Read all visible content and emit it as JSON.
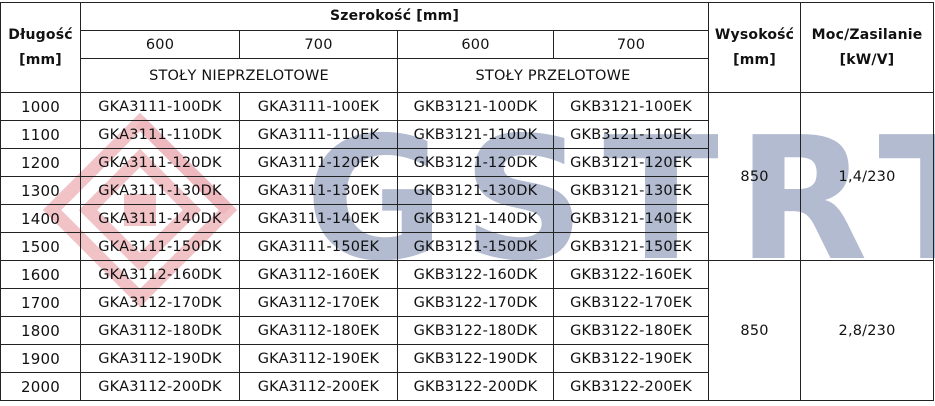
{
  "header": {
    "length_title": "Długość",
    "length_unit": "[mm]",
    "width_title": "Szerokość [mm]",
    "widths": [
      "600",
      "700",
      "600",
      "700"
    ],
    "group_left": "STOŁY NIEPRZELOTOWE",
    "group_right": "STOŁY PRZELOTOWE",
    "height_title": "Wysokość",
    "height_unit": "[mm]",
    "power_title": "Moc/Zasilanie",
    "power_unit": "[kW/V]"
  },
  "rows": [
    {
      "length": "1000",
      "c1": "GKA3111-100DK",
      "c2": "GKA3111-100EK",
      "c3": "GKB3121-100DK",
      "c4": "GKB3121-100EK"
    },
    {
      "length": "1100",
      "c1": "GKA3111-110DK",
      "c2": "GKA3111-110EK",
      "c3": "GKB3121-110DK",
      "c4": "GKB3121-110EK"
    },
    {
      "length": "1200",
      "c1": "GKA3111-120DK",
      "c2": "GKA3111-120EK",
      "c3": "GKB3121-120DK",
      "c4": "GKB3121-120EK"
    },
    {
      "length": "1300",
      "c1": "GKA3111-130DK",
      "c2": "GKA3111-130EK",
      "c3": "GKB3121-130DK",
      "c4": "GKB3121-130EK"
    },
    {
      "length": "1400",
      "c1": "GKA3111-140DK",
      "c2": "GKA3111-140EK",
      "c3": "GKB3121-140DK",
      "c4": "GKB3121-140EK"
    },
    {
      "length": "1500",
      "c1": "GKA3111-150DK",
      "c2": "GKA3111-150EK",
      "c3": "GKB3121-150DK",
      "c4": "GKB3121-150EK"
    },
    {
      "length": "1600",
      "c1": "GKA3112-160DK",
      "c2": "GKA3112-160EK",
      "c3": "GKB3122-160DK",
      "c4": "GKB3122-160EK"
    },
    {
      "length": "1700",
      "c1": "GKA3112-170DK",
      "c2": "GKA3112-170EK",
      "c3": "GKB3122-170DK",
      "c4": "GKB3122-170EK"
    },
    {
      "length": "1800",
      "c1": "GKA3112-180DK",
      "c2": "GKA3112-180EK",
      "c3": "GKB3122-180DK",
      "c4": "GKB3122-180EK"
    },
    {
      "length": "1900",
      "c1": "GKA3112-190DK",
      "c2": "GKA3112-190EK",
      "c3": "GKB3122-190DK",
      "c4": "GKB3122-190EK"
    },
    {
      "length": "2000",
      "c1": "GKA3112-200DK",
      "c2": "GKA3112-200EK",
      "c3": "GKB3122-200DK",
      "c4": "GKB3122-200EK"
    }
  ],
  "groups": [
    {
      "height": "850",
      "power": "1,4/230"
    },
    {
      "height": "850",
      "power": "2,8/230"
    }
  ],
  "watermark": {
    "text": "GSTRT",
    "logo_color": "#e0707a",
    "text_color": "#4a6090"
  }
}
